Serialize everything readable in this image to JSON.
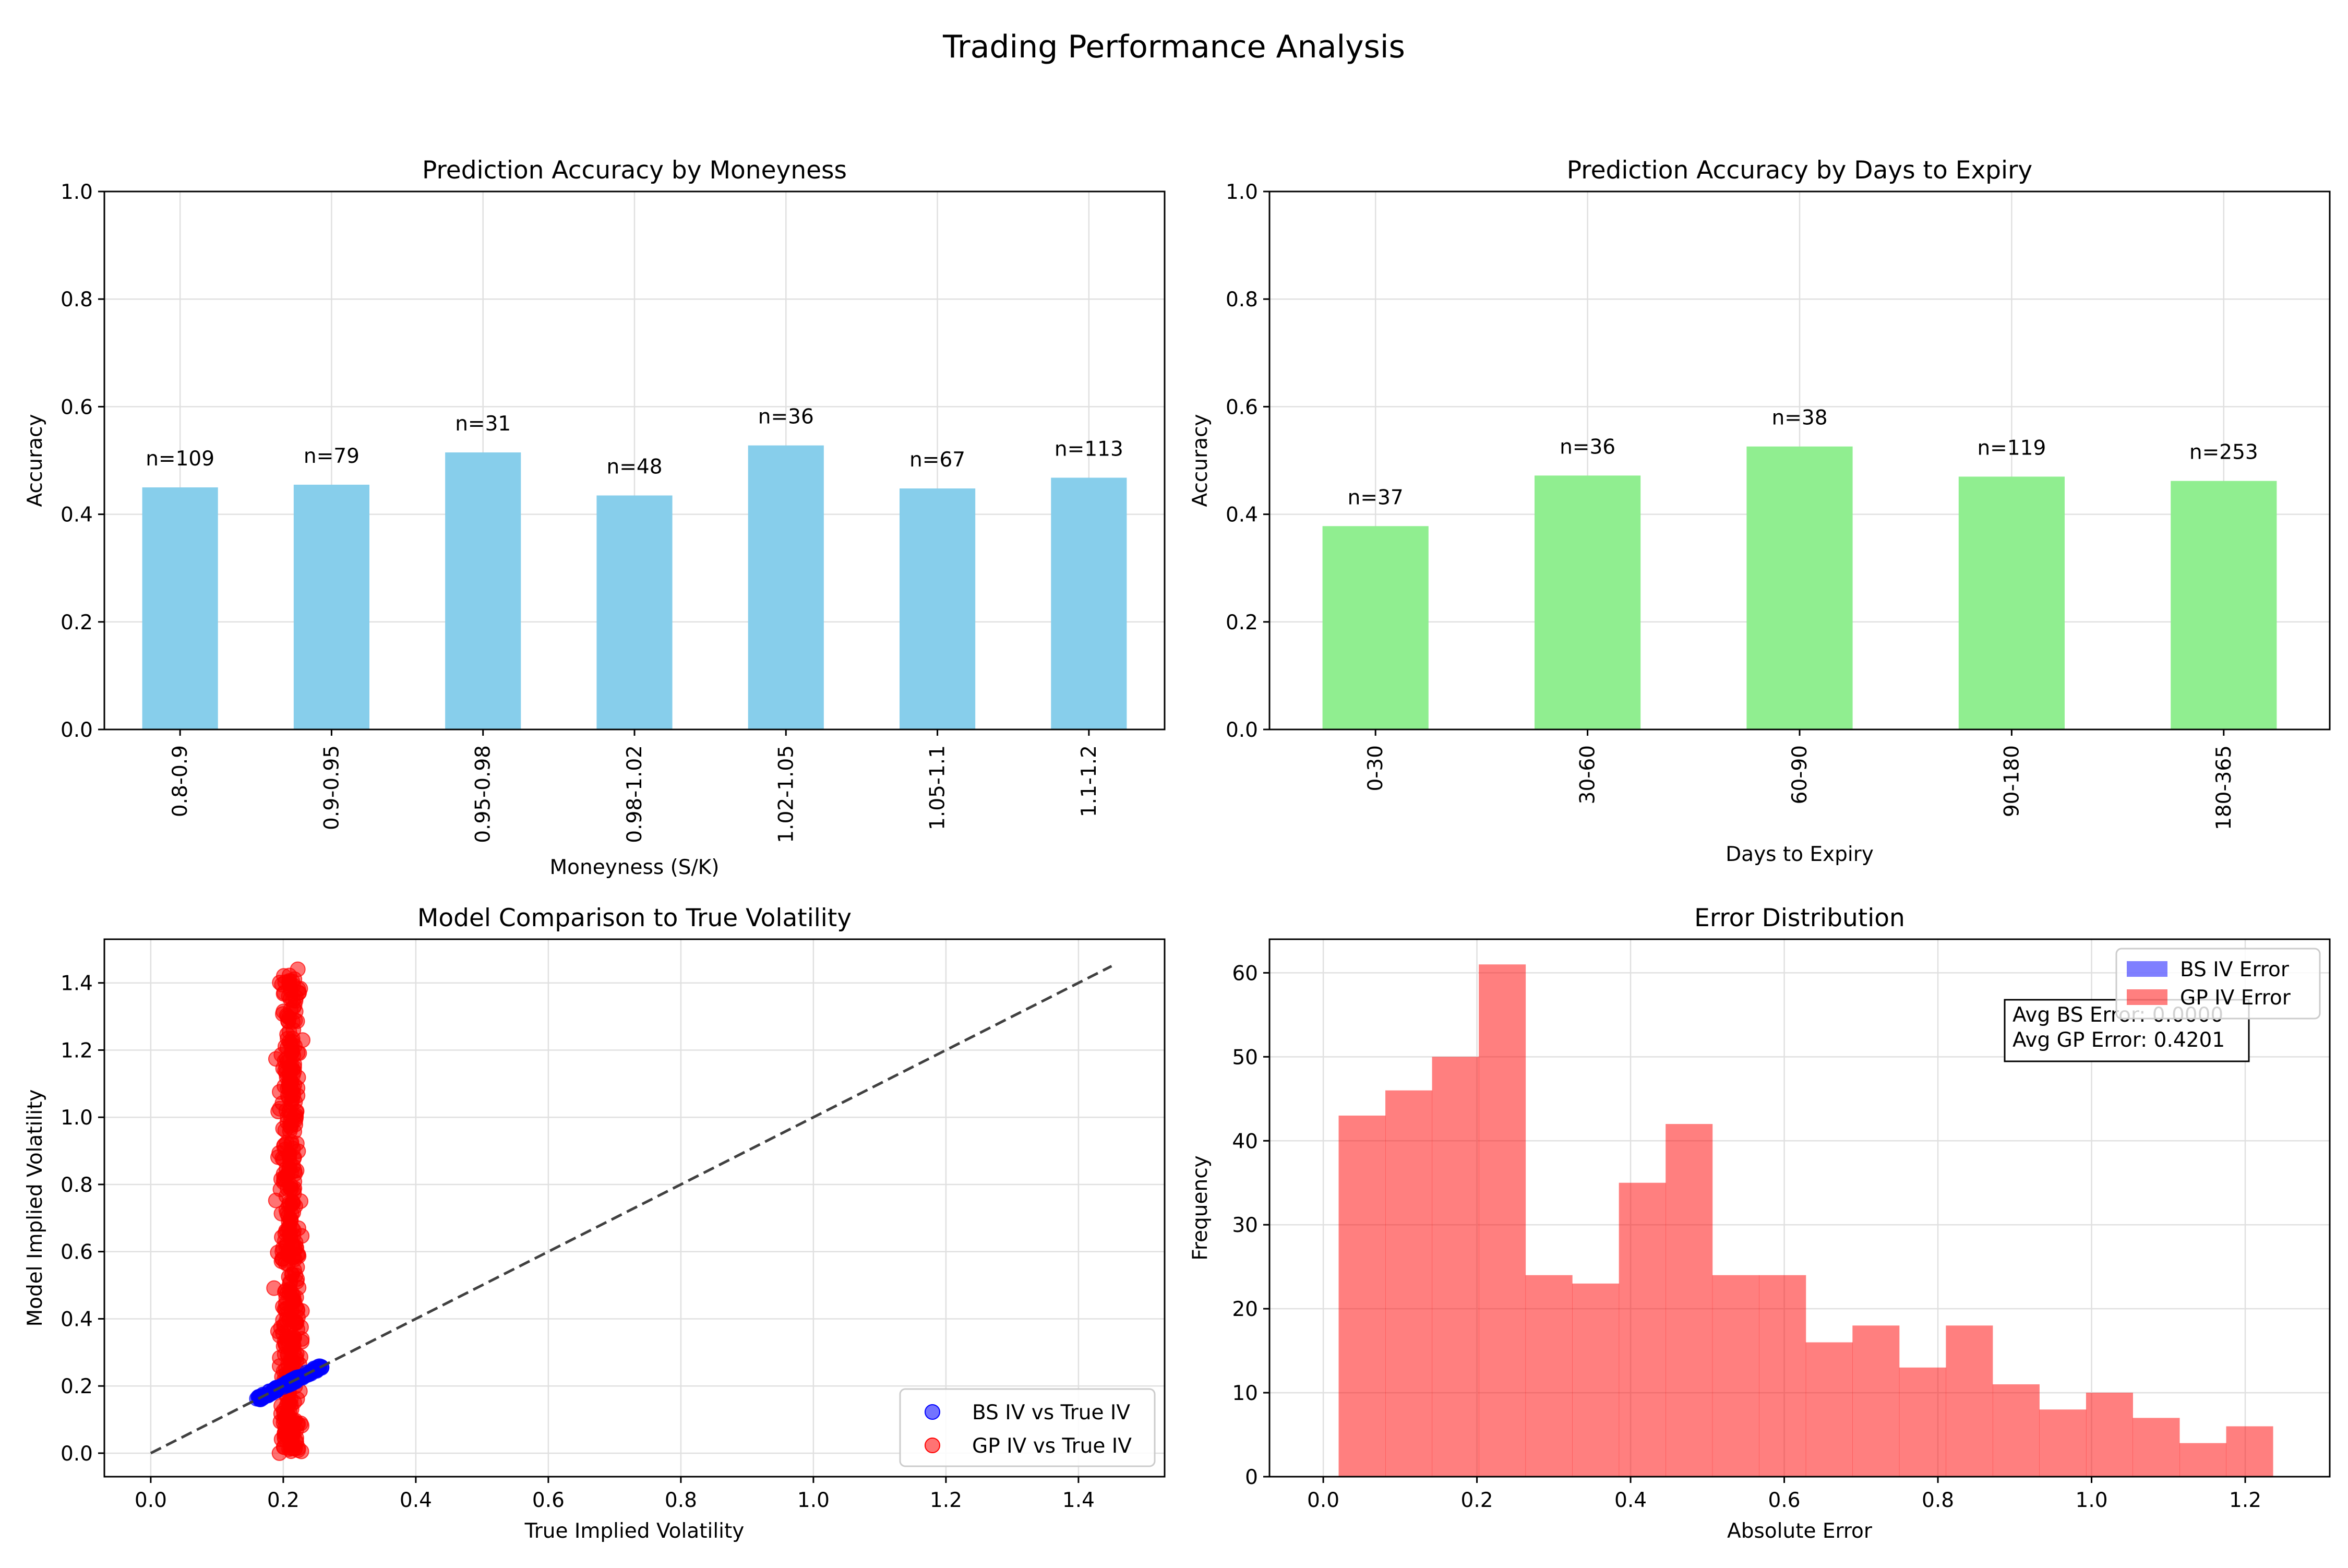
{
  "title": "Trading Performance Analysis",
  "colors": {
    "skyblue": "#87CEEB",
    "lightgreen": "#90EE90",
    "blue": "#0000FF",
    "red": "#FF0000",
    "diag": "#404040",
    "grid": "#e0e0e0"
  },
  "chart_data": [
    {
      "type": "bar",
      "title": "Prediction Accuracy by Moneyness",
      "xlabel": "Moneyness (S/K)",
      "ylabel": "Accuracy",
      "ylim": [
        0,
        1
      ],
      "yticks": [
        "0.0",
        "0.2",
        "0.4",
        "0.6",
        "0.8",
        "1.0"
      ],
      "grid": true,
      "categories": [
        "0.8-0.9",
        "0.9-0.95",
        "0.95-0.98",
        "0.98-1.02",
        "1.02-1.05",
        "1.05-1.1",
        "1.1-1.2"
      ],
      "values": [
        0.45,
        0.455,
        0.515,
        0.435,
        0.528,
        0.448,
        0.468
      ],
      "labels": [
        "n=109",
        "n=79",
        "n=31",
        "n=48",
        "n=36",
        "n=67",
        "n=113"
      ]
    },
    {
      "type": "bar",
      "title": "Prediction Accuracy by Days to Expiry",
      "xlabel": "Days to Expiry",
      "ylabel": "Accuracy",
      "ylim": [
        0,
        1
      ],
      "yticks": [
        "0.0",
        "0.2",
        "0.4",
        "0.6",
        "0.8",
        "1.0"
      ],
      "grid": true,
      "categories": [
        "0-30",
        "30-60",
        "60-90",
        "90-180",
        "180-365"
      ],
      "values": [
        0.378,
        0.472,
        0.526,
        0.47,
        0.462
      ],
      "labels": [
        "n=37",
        "n=36",
        "n=38",
        "n=119",
        "n=253"
      ]
    },
    {
      "type": "scatter",
      "title": "Model Comparison to True Volatility",
      "xlabel": "True Implied Volatility",
      "ylabel": "Model Implied Volatility",
      "xlim": [
        -0.07,
        1.53
      ],
      "ylim": [
        -0.07,
        1.53
      ],
      "xticks": [
        "0.0",
        "0.2",
        "0.4",
        "0.6",
        "0.8",
        "1.0",
        "1.2",
        "1.4"
      ],
      "yticks": [
        "0.0",
        "0.2",
        "0.4",
        "0.6",
        "0.8",
        "1.0",
        "1.2",
        "1.4"
      ],
      "grid": true,
      "legend": "lower-right",
      "reference_line": [
        [
          0,
          0
        ],
        [
          1.45,
          1.45
        ]
      ],
      "series": [
        {
          "name": "BS IV vs True IV",
          "color": "blue",
          "x_range": [
            0.16,
            0.26
          ],
          "y_relation": "y = x (approx.)"
        },
        {
          "name": "GP IV vs True IV",
          "color": "red",
          "x_range": [
            0.16,
            0.26
          ],
          "y_range": [
            0.0,
            1.45
          ]
        }
      ]
    },
    {
      "type": "histogram",
      "title": "Error Distribution",
      "xlabel": "Absolute Error",
      "ylabel": "Frequency",
      "xlim": [
        -0.07,
        1.31
      ],
      "ylim": [
        0,
        64
      ],
      "xticks": [
        "0.0",
        "0.2",
        "0.4",
        "0.6",
        "0.8",
        "1.0",
        "1.2"
      ],
      "yticks": [
        "0",
        "10",
        "20",
        "30",
        "40",
        "50",
        "60"
      ],
      "grid": true,
      "legend": "top-right",
      "bin_edges": [
        0.02,
        0.0808,
        0.1416,
        0.2024,
        0.2632,
        0.324,
        0.3848,
        0.4456,
        0.5064,
        0.5672,
        0.628,
        0.6888,
        0.7496,
        0.8104,
        0.8712,
        0.932,
        0.9928,
        1.0536,
        1.1144,
        1.1752,
        1.236
      ],
      "series": [
        {
          "name": "BS IV Error",
          "color": "blue",
          "counts": []
        },
        {
          "name": "GP IV Error",
          "color": "red",
          "counts": [
            43,
            46,
            50,
            61,
            24,
            23,
            35,
            42,
            24,
            24,
            16,
            18,
            13,
            18,
            11,
            8,
            10,
            7,
            4,
            6
          ]
        }
      ],
      "annotation": [
        "Avg BS Error: 0.0000",
        "Avg GP Error: 0.4201"
      ]
    }
  ]
}
